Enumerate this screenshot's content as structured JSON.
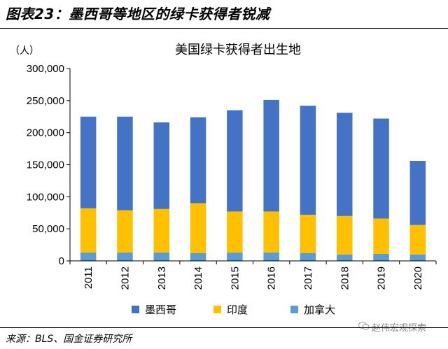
{
  "header": {
    "figure_title": "图表23：墨西哥等地区的绿卡获得者锐减"
  },
  "chart_data": {
    "type": "bar",
    "stacked": true,
    "title": "美国绿卡获得者出生地",
    "unit_label": "（人）",
    "categories": [
      "2011",
      "2012",
      "2013",
      "2014",
      "2015",
      "2016",
      "2017",
      "2018",
      "2019",
      "2020"
    ],
    "series": [
      {
        "name": "墨西哥",
        "color": "#4472C4",
        "values": [
          143000,
          146000,
          135000,
          134000,
          158000,
          174000,
          170000,
          161000,
          156000,
          100000
        ]
      },
      {
        "name": "印度",
        "color": "#FFC000",
        "values": [
          69000,
          66000,
          68000,
          78000,
          64000,
          64000,
          60000,
          60000,
          55000,
          46000
        ]
      },
      {
        "name": "加拿大",
        "color": "#5B9BD5",
        "values": [
          13000,
          13000,
          13000,
          12000,
          13000,
          13000,
          12000,
          10000,
          11000,
          10000
        ]
      }
    ],
    "ylim": [
      0,
      300000
    ],
    "yticks": [
      0,
      50000,
      100000,
      150000,
      200000,
      250000,
      300000
    ],
    "ytick_labels": [
      "0",
      "50,000",
      "100,000",
      "150,000",
      "200,000",
      "250,000",
      "300,000"
    ],
    "legend_position": "bottom"
  },
  "footer": {
    "source": "来源：BLS、国金证券研究所",
    "watermark": "赵伟宏观探索"
  }
}
